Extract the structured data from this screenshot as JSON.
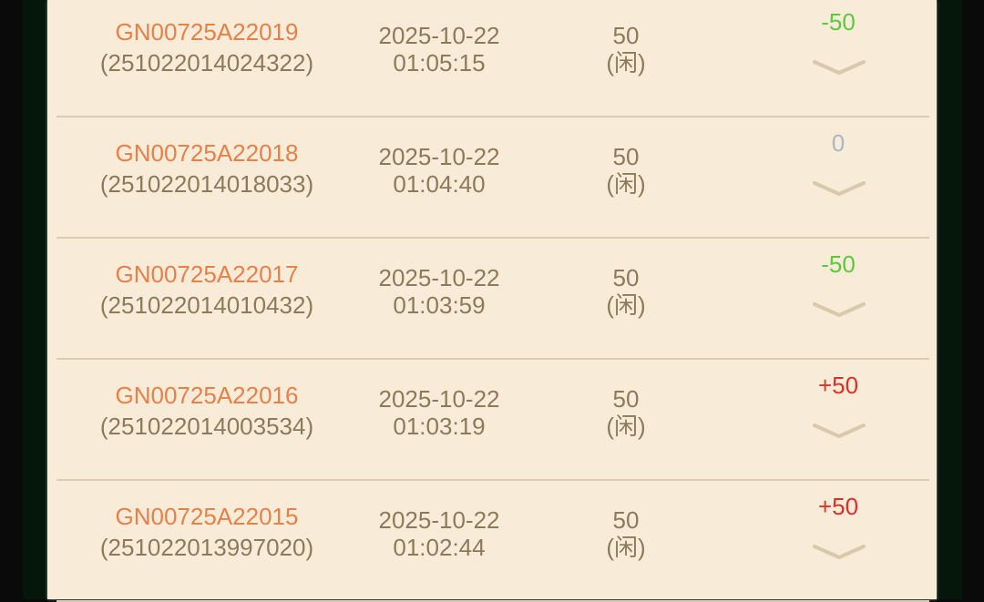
{
  "rows": [
    {
      "game_id": "GN00725A22019",
      "order_id": "(251022014024322)",
      "date": "2025-10-22",
      "time": "01:05:15",
      "amount": "50",
      "bet": "(闲)",
      "result": "-50",
      "result_color": "#5ec83c"
    },
    {
      "game_id": "GN00725A22018",
      "order_id": "(251022014018033)",
      "date": "2025-10-22",
      "time": "01:04:40",
      "amount": "50",
      "bet": "(闲)",
      "result": "0",
      "result_color": "#a8b8c4"
    },
    {
      "game_id": "GN00725A22017",
      "order_id": "(251022014010432)",
      "date": "2025-10-22",
      "time": "01:03:59",
      "amount": "50",
      "bet": "(闲)",
      "result": "-50",
      "result_color": "#5ec83c"
    },
    {
      "game_id": "GN00725A22016",
      "order_id": "(251022014003534)",
      "date": "2025-10-22",
      "time": "01:03:19",
      "amount": "50",
      "bet": "(闲)",
      "result": "+50",
      "result_color": "#e0302a"
    },
    {
      "game_id": "GN00725A22015",
      "order_id": "(251022013997020)",
      "date": "2025-10-22",
      "time": "01:02:44",
      "amount": "50",
      "bet": "(闲)",
      "result": "+50",
      "result_color": "#e0302a"
    }
  ],
  "icons": {
    "expand": "chevron-down-icon"
  }
}
